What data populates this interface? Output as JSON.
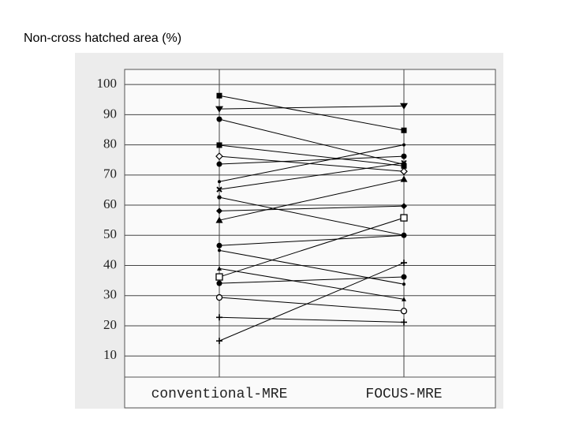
{
  "chart_data": {
    "type": "line",
    "title": "Non-cross hatched area (%)",
    "categories": [
      "conventional-MRE",
      "FOCUS-MRE"
    ],
    "ylim": [
      3,
      105
    ],
    "yticks": [
      10,
      20,
      30,
      40,
      50,
      60,
      70,
      80,
      90,
      100
    ],
    "grid": true,
    "series": [
      {
        "color": "#000000",
        "marker": "square",
        "values": [
          96.3,
          84.8
        ]
      },
      {
        "color": "#000000",
        "marker": "triangle-down",
        "values": [
          91.9,
          92.9
        ]
      },
      {
        "color": "#000000",
        "marker": "circle",
        "values": [
          88.5,
          73.5
        ]
      },
      {
        "color": "#000000",
        "marker": "square",
        "values": [
          79.9,
          73.0
        ]
      },
      {
        "color": "#000000",
        "marker": "diamond-open",
        "values": [
          76.2,
          71.2
        ]
      },
      {
        "color": "#000000",
        "marker": "circle",
        "values": [
          73.6,
          76.2
        ]
      },
      {
        "color": "#000000",
        "marker": "dot",
        "values": [
          67.8,
          80.0
        ]
      },
      {
        "color": "#000000",
        "marker": "x",
        "values": [
          65.2,
          74.0
        ]
      },
      {
        "color": "#000000",
        "marker": "star",
        "values": [
          62.6,
          50.0
        ]
      },
      {
        "color": "#000000",
        "marker": "diamond",
        "values": [
          58.1,
          59.7
        ]
      },
      {
        "color": "#000000",
        "marker": "triangle",
        "values": [
          55.0,
          68.6
        ]
      },
      {
        "color": "#000000",
        "marker": "circle",
        "values": [
          46.6,
          50.0
        ]
      },
      {
        "color": "#000000",
        "marker": "dot",
        "values": [
          45.0,
          33.8
        ]
      },
      {
        "color": "#000000",
        "marker": "triangle-small",
        "values": [
          39.0,
          28.8
        ]
      },
      {
        "color": "#000000",
        "marker": "square-open",
        "values": [
          36.2,
          55.8
        ]
      },
      {
        "color": "#000000",
        "marker": "circle",
        "values": [
          34.1,
          36.2
        ]
      },
      {
        "color": "#000000",
        "marker": "circle-open",
        "values": [
          29.4,
          24.9
        ]
      },
      {
        "color": "#000000",
        "marker": "plus",
        "values": [
          22.8,
          21.2
        ]
      },
      {
        "color": "#000000",
        "marker": "plus",
        "values": [
          15.0,
          40.9
        ]
      }
    ]
  }
}
